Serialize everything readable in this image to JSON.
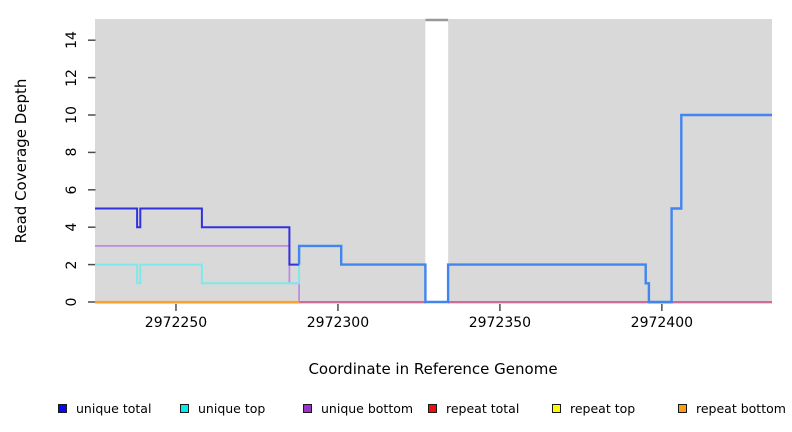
{
  "chart": {
    "x_axis": {
      "label": "Coordinate in Reference Genome",
      "ticks": [
        2972250,
        2972300,
        2972350,
        2972400
      ],
      "range": [
        2972225,
        2972434
      ]
    },
    "y_axis": {
      "label": "Read Coverage Depth",
      "ticks": [
        0,
        2,
        4,
        6,
        8,
        10,
        12,
        14
      ],
      "range": [
        0,
        15.2
      ]
    },
    "legend": {
      "items": [
        {
          "label": "unique total",
          "color": "#0a0af0"
        },
        {
          "label": "unique top",
          "color": "#00eded"
        },
        {
          "label": "unique bottom",
          "color": "#9933cc"
        },
        {
          "label": "repeat total",
          "color": "#ee1010"
        },
        {
          "label": "repeat top",
          "color": "#fdfd00"
        },
        {
          "label": "repeat bottom",
          "color": "#fb9d17"
        }
      ]
    }
  },
  "chart_data": {
    "type": "line",
    "step": true,
    "title": "",
    "xlabel": "Coordinate in Reference Genome",
    "ylabel": "Read Coverage Depth",
    "xlim": [
      2972225,
      2972434
    ],
    "ylim": [
      0,
      15.2
    ],
    "grid": false,
    "legend_position": "bottom",
    "panel_background": "#d9d9d9",
    "masked_region": {
      "start": 2972327,
      "end": 2972334,
      "fill": "#ffffff",
      "cap_color": "#999999"
    },
    "series": [
      {
        "name": "unique total",
        "legend_color": "#0a0af0",
        "segments": [
          [
            2972225,
            2972238,
            5
          ],
          [
            2972238,
            2972239,
            4
          ],
          [
            2972239,
            2972258,
            5
          ],
          [
            2972258,
            2972285,
            4
          ],
          [
            2972285,
            2972288,
            2
          ],
          [
            2972288,
            2972301,
            3
          ],
          [
            2972301,
            2972327,
            2
          ],
          [
            2972327,
            2972334,
            0
          ],
          [
            2972334,
            2972395,
            2
          ],
          [
            2972395,
            2972396,
            1
          ],
          [
            2972396,
            2972403,
            0
          ],
          [
            2972403,
            2972406,
            5
          ],
          [
            2972406,
            2972434,
            10
          ]
        ]
      },
      {
        "name": "unique top",
        "legend_color": "#00eded",
        "segments": [
          [
            2972225,
            2972238,
            2
          ],
          [
            2972238,
            2972239,
            1
          ],
          [
            2972239,
            2972258,
            2
          ],
          [
            2972258,
            2972288,
            1
          ],
          [
            2972288,
            2972301,
            3
          ],
          [
            2972301,
            2972327,
            2
          ],
          [
            2972327,
            2972334,
            0
          ],
          [
            2972334,
            2972395,
            2
          ],
          [
            2972395,
            2972396,
            1
          ],
          [
            2972396,
            2972403,
            0
          ],
          [
            2972403,
            2972406,
            5
          ],
          [
            2972406,
            2972434,
            10
          ]
        ]
      },
      {
        "name": "unique bottom",
        "legend_color": "#9933cc",
        "segments": [
          [
            2972225,
            2972285,
            3
          ],
          [
            2972285,
            2972288,
            1
          ],
          [
            2972288,
            2972434,
            0
          ]
        ]
      },
      {
        "name": "repeat total",
        "legend_color": "#ee1010",
        "segments": [
          [
            2972225,
            2972434,
            0
          ]
        ]
      },
      {
        "name": "repeat top",
        "legend_color": "#fdfd00",
        "segments": [
          [
            2972225,
            2972288,
            0
          ]
        ]
      },
      {
        "name": "repeat bottom",
        "legend_color": "#fb9d17",
        "segments": [
          [
            2972225,
            2972288,
            0
          ]
        ]
      }
    ],
    "plot_layers": [
      {
        "series": "unique bottom",
        "color": "#bd8ce2",
        "width": 1.8,
        "segments": [
          [
            2972225,
            2972285,
            3
          ],
          [
            2972285,
            2972288,
            1
          ],
          [
            2972288,
            2972434,
            0
          ]
        ]
      },
      {
        "series": "repeat total",
        "color": "#d2638e",
        "width": 1.8,
        "segments": [
          [
            2972288,
            2972434,
            0
          ]
        ]
      },
      {
        "series": "repeat bottom",
        "color": "#fba12f",
        "width": 2.2,
        "segments": [
          [
            2972225,
            2972288,
            0
          ]
        ]
      },
      {
        "series": "unique top",
        "color": "#7de9ea",
        "width": 2,
        "close_to": 3,
        "segments": [
          [
            2972225,
            2972238,
            2
          ],
          [
            2972238,
            2972239,
            1
          ],
          [
            2972239,
            2972258,
            2
          ],
          [
            2972258,
            2972288,
            1
          ]
        ]
      },
      {
        "series": "unique total",
        "color": "#3132dd",
        "width": 2,
        "segments": [
          [
            2972225,
            2972238,
            5
          ],
          [
            2972238,
            2972239,
            4
          ],
          [
            2972239,
            2972258,
            5
          ],
          [
            2972258,
            2972285,
            4
          ],
          [
            2972285,
            2972288,
            2
          ]
        ]
      },
      {
        "series": "unique total + unique top",
        "color": "#4186f0",
        "width": 2.4,
        "start_from": 2,
        "above_mask": true,
        "segments": [
          [
            2972288,
            2972301,
            3
          ],
          [
            2972301,
            2972327,
            2
          ],
          [
            2972327,
            2972334,
            0
          ],
          [
            2972334,
            2972395,
            2
          ],
          [
            2972395,
            2972396,
            1
          ],
          [
            2972396,
            2972403,
            0
          ],
          [
            2972403,
            2972406,
            5
          ],
          [
            2972406,
            2972434,
            10
          ]
        ]
      }
    ]
  }
}
